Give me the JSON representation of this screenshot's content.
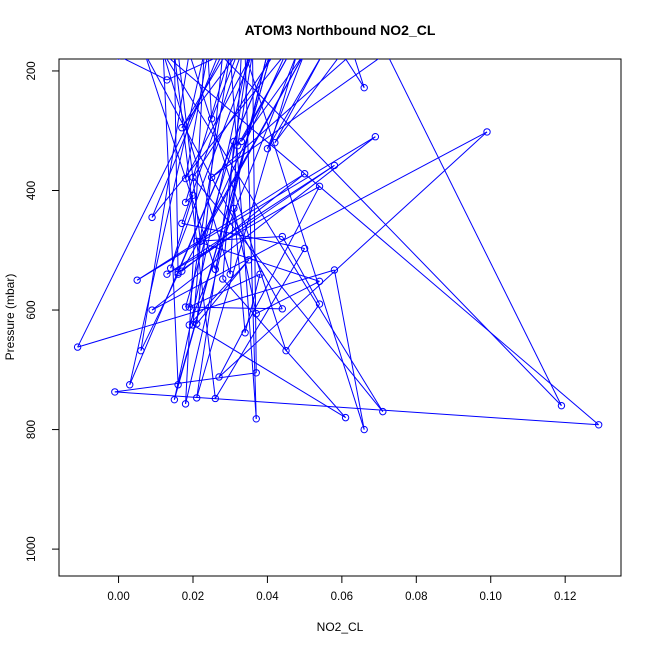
{
  "chart_data": {
    "type": "line",
    "title": "ATOM3 Northbound NO2_CL",
    "xlabel": "NO2_CL",
    "ylabel": "Pressure (mbar)",
    "xlim": [
      -0.016,
      0.135
    ],
    "ylim": [
      1045,
      180
    ],
    "y_reversed": true,
    "x_ticks": [
      0.0,
      0.02,
      0.04,
      0.06,
      0.08,
      0.1,
      0.12
    ],
    "x_tick_labels": [
      "0.00",
      "0.02",
      "0.04",
      "0.06",
      "0.08",
      "0.10",
      "0.12"
    ],
    "y_ticks": [
      200,
      400,
      600,
      800,
      1000
    ],
    "y_tick_labels": [
      "200",
      "400",
      "600",
      "800",
      "1000"
    ],
    "grid": false,
    "series": [
      {
        "color": "#0000ff",
        "marker": "open-circle",
        "points": [
          [
            0.0,
            175
          ],
          [
            0.013,
            215
          ],
          [
            0.029,
            170
          ],
          [
            0.017,
            295
          ],
          [
            0.032,
            170
          ],
          [
            0.025,
            280
          ],
          [
            0.024,
            170
          ],
          [
            0.018,
            380
          ],
          [
            0.036,
            170
          ],
          [
            0.032,
            325
          ],
          [
            0.046,
            170
          ],
          [
            0.033,
            318
          ],
          [
            0.05,
            170
          ],
          [
            0.04,
            330
          ],
          [
            0.055,
            170
          ],
          [
            0.042,
            320
          ],
          [
            0.06,
            170
          ],
          [
            0.066,
            228
          ],
          [
            0.063,
            170
          ],
          [
            0.025,
            378
          ],
          [
            0.072,
            170
          ],
          [
            0.119,
            760
          ],
          [
            0.027,
            170
          ],
          [
            0.009,
            445
          ],
          [
            0.045,
            170
          ],
          [
            0.022,
            485
          ],
          [
            0.05,
            170
          ],
          [
            0.017,
            535
          ],
          [
            0.05,
            372
          ],
          [
            0.005,
            550
          ],
          [
            0.069,
            310
          ],
          [
            0.009,
            600
          ],
          [
            0.099,
            302
          ],
          [
            0.027,
            712
          ],
          [
            0.054,
            393
          ],
          [
            0.013,
            540
          ],
          [
            0.058,
            358
          ],
          [
            0.016,
            537
          ],
          [
            0.041,
            170
          ],
          [
            0.015,
            750
          ],
          [
            0.035,
            170
          ],
          [
            0.021,
            747
          ],
          [
            0.048,
            170
          ],
          [
            0.019,
            625
          ],
          [
            0.035,
            516
          ],
          [
            0.021,
            623
          ],
          [
            0.028,
            170
          ],
          [
            -0.011,
            662
          ],
          [
            0.058,
            533
          ],
          [
            0.066,
            800
          ],
          [
            0.034,
            170
          ],
          [
            0.037,
            782
          ],
          [
            0.03,
            170
          ],
          [
            0.019,
            595
          ],
          [
            0.038,
            540
          ],
          [
            0.034,
            638
          ],
          [
            0.031,
            430
          ],
          [
            0.037,
            606
          ],
          [
            0.054,
            552
          ],
          [
            0.021,
            485
          ],
          [
            0.044,
            477
          ],
          [
            0.054,
            590
          ],
          [
            0.045,
            668
          ],
          [
            0.019,
            170
          ],
          [
            0.006,
            668
          ],
          [
            0.016,
            540
          ],
          [
            0.015,
            170
          ],
          [
            0.026,
            748
          ],
          [
            0.05,
            497
          ],
          [
            0.017,
            455
          ],
          [
            0.033,
            170
          ],
          [
            0.03,
            540
          ],
          [
            0.012,
            170
          ],
          [
            0.016,
            725
          ],
          [
            0.041,
            170
          ],
          [
            0.003,
            725
          ],
          [
            0.023,
            170
          ],
          [
            0.018,
            757
          ],
          [
            0.04,
            170
          ],
          [
            0.026,
            532
          ],
          [
            0.007,
            170
          ],
          [
            0.044,
            598
          ],
          [
            0.018,
            595
          ],
          [
            0.031,
            318
          ],
          [
            0.028,
            548
          ],
          [
            0.061,
            780
          ],
          [
            0.02,
            625
          ],
          [
            0.022,
            485
          ],
          [
            0.016,
            170
          ],
          [
            0.042,
            170
          ],
          [
            0.02,
            378
          ],
          [
            0.071,
            770
          ],
          [
            0.012,
            170
          ],
          [
            0.129,
            792
          ],
          [
            -0.001,
            737
          ],
          [
            0.037,
            705
          ],
          [
            0.036,
            170
          ],
          [
            0.014,
            530
          ],
          [
            0.02,
            408
          ],
          [
            0.018,
            420
          ],
          [
            0.03,
            170
          ],
          [
            0.036,
            170
          ],
          [
            0.016,
            170
          ]
        ]
      }
    ]
  }
}
